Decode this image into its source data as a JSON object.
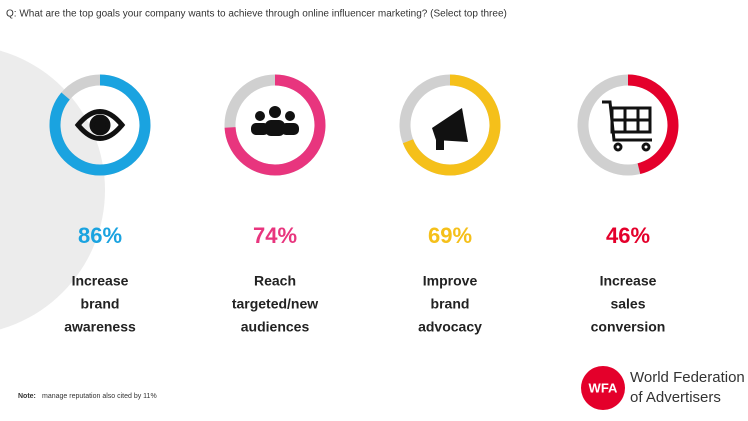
{
  "chart_data": {
    "type": "donut",
    "title": "Q: What are the top goals your company wants to achieve through online influencer marketing? (Select top three)",
    "categories": [
      [
        "Increase",
        "brand",
        "awareness"
      ],
      [
        "Reach",
        "targeted/new",
        "audiences"
      ],
      [
        "Improve",
        "brand",
        "advocacy"
      ],
      [
        "Increase",
        "sales",
        "conversion"
      ]
    ],
    "values": [
      86,
      74,
      69,
      46
    ],
    "value_labels": [
      "86%",
      "74%",
      "69%",
      "46%"
    ],
    "colors": [
      "#1aa3e0",
      "#e8357e",
      "#f5c01a",
      "#e4002b"
    ],
    "track_color": "#d0d0d0",
    "note_label": "Note:",
    "note": "manage reputation also cited by 11%",
    "logo": {
      "mark": "WFA",
      "lines": [
        "World Federation",
        "of Advertisers"
      ]
    }
  }
}
